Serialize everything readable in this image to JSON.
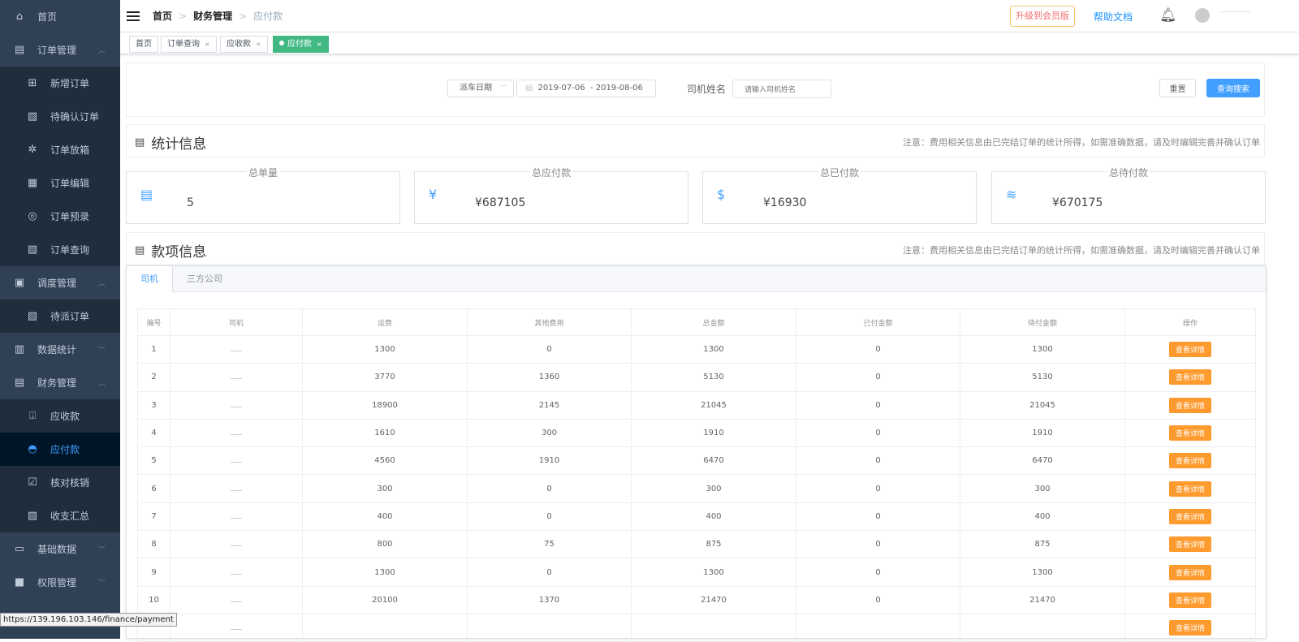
{
  "sidebar": {
    "items": [
      {
        "label": "首页",
        "icon": "home-icon",
        "type": "top"
      },
      {
        "label": "订单管理",
        "icon": "clipboard-icon",
        "type": "top",
        "chev": "up"
      },
      {
        "label": "新增订单",
        "icon": "plus-square-icon",
        "type": "sub"
      },
      {
        "label": "待确认订单",
        "icon": "doc-clock-icon",
        "type": "sub"
      },
      {
        "label": "订单放箱",
        "icon": "gear-icon",
        "type": "sub"
      },
      {
        "label": "订单编辑",
        "icon": "edit-doc-icon",
        "type": "sub"
      },
      {
        "label": "订单预录",
        "icon": "record-icon",
        "type": "sub"
      },
      {
        "label": "订单查询",
        "icon": "search-doc-icon",
        "type": "sub"
      },
      {
        "label": "调度管理",
        "icon": "sliders-icon",
        "type": "top",
        "chev": "up"
      },
      {
        "label": "待派订单",
        "icon": "doc-clock-icon",
        "type": "sub"
      },
      {
        "label": "数据统计",
        "icon": "bar-chart-icon",
        "type": "top",
        "chev": "down"
      },
      {
        "label": "财务管理",
        "icon": "finance-icon",
        "type": "top",
        "chev": "up"
      },
      {
        "label": "应收款",
        "icon": "download-icon",
        "type": "sub"
      },
      {
        "label": "应付款",
        "icon": "eye-icon",
        "type": "sub",
        "active": true
      },
      {
        "label": "核对核销",
        "icon": "check-doc-icon",
        "type": "sub"
      },
      {
        "label": "收支汇总",
        "icon": "summary-icon",
        "type": "sub"
      },
      {
        "label": "基础数据",
        "icon": "devices-icon",
        "type": "top",
        "chev": "down"
      },
      {
        "label": "权限管理",
        "icon": "lock-icon",
        "type": "top",
        "chev": "down"
      }
    ]
  },
  "header": {
    "breadcrumb": [
      "首页",
      "财务管理",
      "应付款"
    ],
    "upgrade": "升级到会员版",
    "help": "帮助文档"
  },
  "tags": [
    {
      "label": "首页"
    },
    {
      "label": "订单查询",
      "close": "×"
    },
    {
      "label": "应收款",
      "close": "×"
    },
    {
      "label": "应付款",
      "close": "×",
      "active": true
    }
  ],
  "filter": {
    "date_type": "派车日期",
    "date_range": "2019-07-06  - 2019-08-06",
    "driver_label": "司机姓名",
    "driver_placeholder": "请输入司机姓名",
    "reset": "重置",
    "search": "查询搜索"
  },
  "stats": {
    "title": "统计信息",
    "note": "注意：费用相关信息由已完结订单的统计所得，如需准确数据，请及时编辑完善并确认订单",
    "cards": [
      {
        "title": "总单量",
        "value": "5",
        "icon": "clipboard-icon"
      },
      {
        "title": "总应付款",
        "value": "¥687105",
        "icon": "yen-circle-icon"
      },
      {
        "title": "总已付款",
        "value": "¥16930",
        "icon": "dollar-doc-icon"
      },
      {
        "title": "总待付款",
        "value": "¥670175",
        "icon": "coins-icon"
      }
    ]
  },
  "payments": {
    "title": "款项信息",
    "note": "注意：费用相关信息由已完结订单的统计所得，如需准确数据，请及时编辑完善并确认订单",
    "tabs": [
      "司机",
      "三方公司"
    ],
    "columns": [
      "编号",
      "司机",
      "运费",
      "其他费用",
      "总金额",
      "已付金额",
      "待付金额",
      "操作"
    ],
    "action": "查看详情",
    "rows": [
      [
        "1",
        "",
        "1300",
        "0",
        "1300",
        "0",
        "1300"
      ],
      [
        "2",
        "",
        "3770",
        "1360",
        "5130",
        "0",
        "5130"
      ],
      [
        "3",
        "",
        "18900",
        "2145",
        "21045",
        "0",
        "21045"
      ],
      [
        "4",
        "",
        "1610",
        "300",
        "1910",
        "0",
        "1910"
      ],
      [
        "5",
        "",
        "4560",
        "1910",
        "6470",
        "0",
        "6470"
      ],
      [
        "6",
        "",
        "300",
        "0",
        "300",
        "0",
        "300"
      ],
      [
        "7",
        "",
        "400",
        "0",
        "400",
        "0",
        "400"
      ],
      [
        "8",
        "",
        "800",
        "75",
        "875",
        "0",
        "875"
      ],
      [
        "9",
        "",
        "1300",
        "0",
        "1300",
        "0",
        "1300"
      ],
      [
        "10",
        "",
        "20100",
        "1370",
        "21470",
        "0",
        "21470"
      ],
      [
        "",
        "",
        "",
        "",
        "",
        "",
        ""
      ]
    ]
  },
  "status_url": "https://139.196.103.146/finance/payment",
  "colors": {
    "sidebar": "#304156",
    "active": "#409eff",
    "tag_active": "#42b983",
    "action": "#ff9a2e"
  }
}
